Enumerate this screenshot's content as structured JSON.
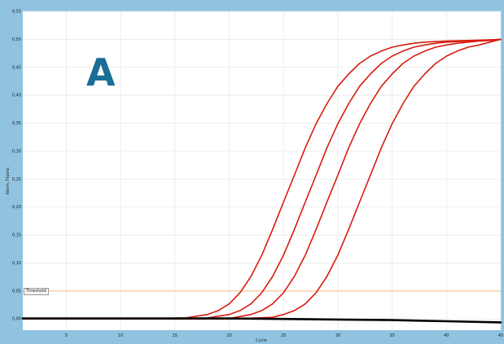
{
  "panel_label": "A",
  "colors": {
    "frame": "#8fc3e0",
    "plot_background": "#ffffff",
    "grid": "#e6e6e6",
    "sample_curves": "#d81c10",
    "threshold": "#f0a060",
    "negative_control": "#000000"
  },
  "chart_data": {
    "type": "line",
    "title": "",
    "xlabel": "Cycle",
    "ylabel": "Norm. Fluoro.",
    "xlim": [
      1,
      45
    ],
    "ylim": [
      -0.02,
      0.55
    ],
    "x_ticks": [
      5,
      10,
      15,
      20,
      25,
      30,
      35,
      40,
      45
    ],
    "x_tick_labels": [
      "5",
      "10",
      "15",
      "20",
      "25",
      "30",
      "35",
      "40",
      "45"
    ],
    "y_ticks": [
      0,
      0.05,
      0.1,
      0.15,
      0.2,
      0.25,
      0.3,
      0.35,
      0.4,
      0.45,
      0.5,
      0.55
    ],
    "y_tick_labels": [
      "0,00",
      "0,05",
      "0,10",
      "0,15",
      "0,20",
      "0,25",
      "0,30",
      "0,35",
      "0,40",
      "0,45",
      "0,50",
      "0,55"
    ],
    "grid": true,
    "threshold": {
      "label": "Threshold",
      "value": 0.05
    },
    "series": [
      {
        "color": "#d81c10",
        "x": [
          1,
          4,
          8,
          12,
          16,
          18,
          19,
          20,
          21,
          22,
          23,
          24,
          25,
          26,
          27,
          28,
          29,
          30,
          31,
          32,
          33,
          34,
          35,
          36,
          37,
          38,
          40,
          42,
          44,
          45
        ],
        "y": [
          0,
          0,
          0,
          0,
          0.002,
          0.008,
          0.015,
          0.027,
          0.047,
          0.076,
          0.114,
          0.16,
          0.209,
          0.257,
          0.306,
          0.349,
          0.385,
          0.416,
          0.438,
          0.457,
          0.47,
          0.479,
          0.486,
          0.49,
          0.493,
          0.495,
          0.497,
          0.498,
          0.499,
          0.5
        ]
      },
      {
        "color": "#d81c10",
        "x": [
          1,
          4,
          8,
          12,
          16,
          18,
          20,
          21,
          22,
          23,
          24,
          25,
          26,
          27,
          28,
          29,
          30,
          31,
          32,
          33,
          34,
          35,
          36,
          37,
          38,
          39,
          40,
          42,
          44,
          45
        ],
        "y": [
          0,
          0,
          0,
          0,
          0,
          0.002,
          0.008,
          0.015,
          0.027,
          0.047,
          0.076,
          0.114,
          0.16,
          0.209,
          0.257,
          0.306,
          0.349,
          0.385,
          0.416,
          0.438,
          0.457,
          0.47,
          0.479,
          0.486,
          0.49,
          0.493,
          0.495,
          0.497,
          0.499,
          0.5
        ]
      },
      {
        "color": "#d81c10",
        "x": [
          1,
          4,
          8,
          12,
          16,
          20,
          22,
          23,
          24,
          25,
          26,
          27,
          28,
          29,
          30,
          31,
          32,
          33,
          34,
          35,
          36,
          37,
          38,
          39,
          40,
          41,
          42,
          43,
          44,
          45
        ],
        "y": [
          0,
          0,
          0,
          0,
          0,
          0.001,
          0.008,
          0.015,
          0.027,
          0.047,
          0.076,
          0.114,
          0.16,
          0.209,
          0.257,
          0.306,
          0.349,
          0.385,
          0.416,
          0.438,
          0.457,
          0.47,
          0.479,
          0.486,
          0.49,
          0.493,
          0.495,
          0.497,
          0.498,
          0.5
        ]
      },
      {
        "color": "#d81c10",
        "x": [
          1,
          4,
          8,
          12,
          16,
          20,
          24,
          25,
          26,
          27,
          28,
          29,
          30,
          31,
          32,
          33,
          34,
          35,
          36,
          37,
          38,
          39,
          40,
          41,
          42,
          43,
          44,
          45
        ],
        "y": [
          0,
          0,
          0,
          0,
          0,
          0,
          0.003,
          0.008,
          0.015,
          0.027,
          0.047,
          0.076,
          0.114,
          0.16,
          0.209,
          0.257,
          0.306,
          0.349,
          0.385,
          0.416,
          0.438,
          0.457,
          0.47,
          0.479,
          0.486,
          0.49,
          0.495,
          0.5
        ]
      },
      {
        "color": "#000000",
        "x": [
          1,
          5,
          10,
          15,
          20,
          25,
          30,
          35,
          40,
          45
        ],
        "y": [
          0.001,
          0.001,
          0.001,
          0.001,
          0.001,
          0.0,
          -0.001,
          -0.002,
          -0.004,
          -0.006
        ]
      }
    ]
  }
}
